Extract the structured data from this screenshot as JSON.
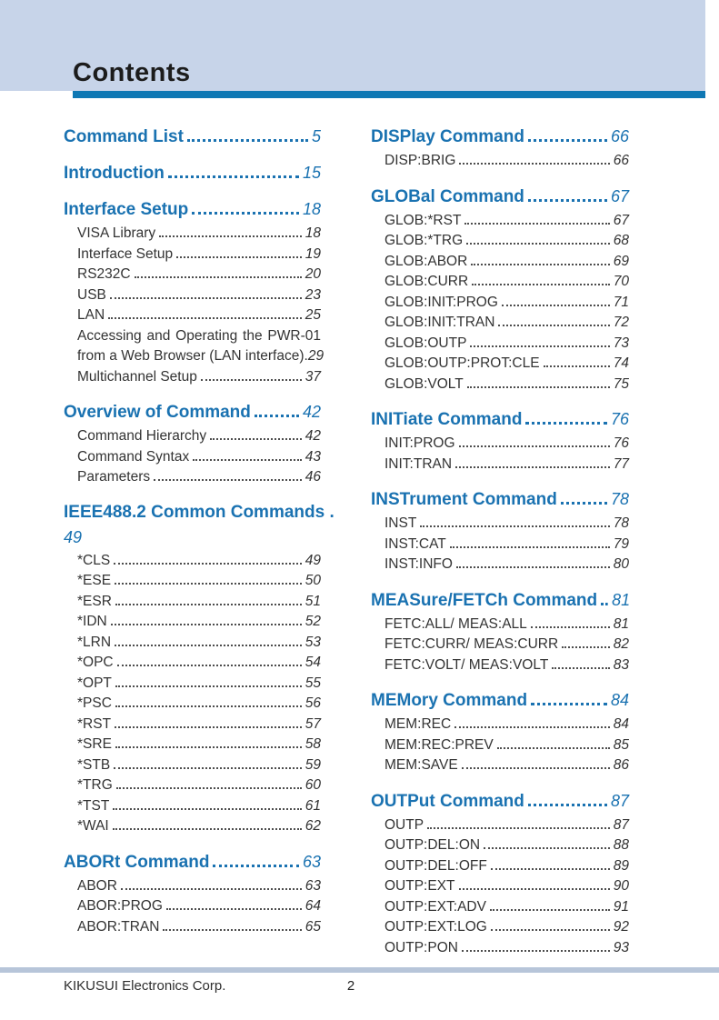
{
  "header": {
    "title": "Contents"
  },
  "footer": {
    "company": "KIKUSUI Electronics Corp.",
    "page_number": "2"
  },
  "colors": {
    "accent_blue": "#0f78b4",
    "heading_blue": "#1a72b1",
    "header_bg": "#c7d4e9",
    "footer_bar": "#b7c5d9",
    "body_text": "#333333"
  },
  "toc": {
    "columns": [
      {
        "sections": [
          {
            "title": "Command List",
            "page": "5",
            "items": []
          },
          {
            "title": "Introduction",
            "page": "15",
            "items": []
          },
          {
            "title": "Interface Setup",
            "page": "18",
            "items": [
              {
                "label": "VISA Library",
                "page": "18"
              },
              {
                "label": "Interface Setup",
                "page": "19"
              },
              {
                "label": "RS232C",
                "page": "20"
              },
              {
                "label": "USB",
                "page": "23"
              },
              {
                "label": "LAN",
                "page": "25"
              },
              {
                "label": "Accessing and Operating the PWR-01",
                "label2": "from a Web Browser (LAN interface).",
                "page": "29",
                "multiline": true
              },
              {
                "label": "Multichannel Setup",
                "page": "37"
              }
            ]
          },
          {
            "title": "Overview of Command",
            "page": "42",
            "items": [
              {
                "label": "Command Hierarchy",
                "page": "42"
              },
              {
                "label": "Command Syntax",
                "page": "43"
              },
              {
                "label": "Parameters",
                "page": "46"
              }
            ]
          },
          {
            "title": "IEEE488.2 Common Commands .",
            "page": "49",
            "page_newline": true,
            "items": [
              {
                "label": "*CLS",
                "page": "49"
              },
              {
                "label": "*ESE",
                "page": "50"
              },
              {
                "label": "*ESR",
                "page": "51"
              },
              {
                "label": "*IDN",
                "page": "52"
              },
              {
                "label": "*LRN",
                "page": "53"
              },
              {
                "label": "*OPC",
                "page": "54"
              },
              {
                "label": "*OPT",
                "page": "55"
              },
              {
                "label": "*PSC",
                "page": "56"
              },
              {
                "label": "*RST",
                "page": "57"
              },
              {
                "label": "*SRE",
                "page": "58"
              },
              {
                "label": "*STB",
                "page": "59"
              },
              {
                "label": "*TRG",
                "page": "60"
              },
              {
                "label": "*TST",
                "page": "61"
              },
              {
                "label": "*WAI",
                "page": "62"
              }
            ]
          },
          {
            "title": "ABORt Command",
            "page": "63",
            "items": [
              {
                "label": "ABOR",
                "page": "63"
              },
              {
                "label": "ABOR:PROG",
                "page": "64"
              },
              {
                "label": "ABOR:TRAN",
                "page": "65"
              }
            ]
          }
        ]
      },
      {
        "sections": [
          {
            "title": "DISPlay Command",
            "page": "66",
            "items": [
              {
                "label": "DISP:BRIG",
                "page": "66"
              }
            ]
          },
          {
            "title": "GLOBal Command",
            "page": "67",
            "items": [
              {
                "label": "GLOB:*RST",
                "page": "67"
              },
              {
                "label": "GLOB:*TRG",
                "page": "68"
              },
              {
                "label": "GLOB:ABOR",
                "page": "69"
              },
              {
                "label": "GLOB:CURR",
                "page": "70"
              },
              {
                "label": "GLOB:INIT:PROG",
                "page": "71"
              },
              {
                "label": "GLOB:INIT:TRAN",
                "page": "72"
              },
              {
                "label": "GLOB:OUTP",
                "page": "73"
              },
              {
                "label": "GLOB:OUTP:PROT:CLE",
                "page": "74"
              },
              {
                "label": "GLOB:VOLT",
                "page": "75"
              }
            ]
          },
          {
            "title": "INITiate Command",
            "page": "76",
            "items": [
              {
                "label": "INIT:PROG",
                "page": "76"
              },
              {
                "label": "INIT:TRAN",
                "page": "77"
              }
            ]
          },
          {
            "title": "INSTrument Command",
            "page": "78",
            "items": [
              {
                "label": "INST",
                "page": "78"
              },
              {
                "label": "INST:CAT",
                "page": "79"
              },
              {
                "label": "INST:INFO",
                "page": "80"
              }
            ]
          },
          {
            "title": "MEASure/FETCh Command",
            "page": "81",
            "items": [
              {
                "label": "FETC:ALL/ MEAS:ALL",
                "page": "81"
              },
              {
                "label": "FETC:CURR/ MEAS:CURR",
                "page": "82"
              },
              {
                "label": "FETC:VOLT/ MEAS:VOLT",
                "page": "83"
              }
            ]
          },
          {
            "title": "MEMory Command",
            "page": "84",
            "items": [
              {
                "label": "MEM:REC",
                "page": "84"
              },
              {
                "label": "MEM:REC:PREV",
                "page": "85"
              },
              {
                "label": "MEM:SAVE",
                "page": "86"
              }
            ]
          },
          {
            "title": "OUTPut Command",
            "page": "87",
            "items": [
              {
                "label": "OUTP",
                "page": "87"
              },
              {
                "label": "OUTP:DEL:ON",
                "page": "88"
              },
              {
                "label": "OUTP:DEL:OFF",
                "page": "89"
              },
              {
                "label": "OUTP:EXT",
                "page": "90"
              },
              {
                "label": "OUTP:EXT:ADV",
                "page": "91"
              },
              {
                "label": "OUTP:EXT:LOG",
                "page": "92"
              },
              {
                "label": "OUTP:PON",
                "page": "93"
              }
            ]
          }
        ]
      }
    ]
  }
}
